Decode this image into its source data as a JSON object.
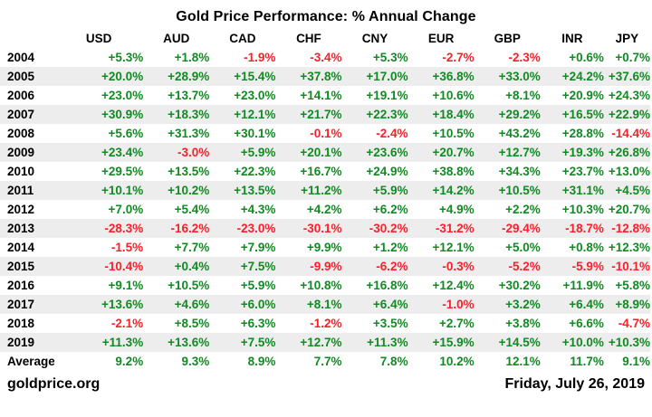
{
  "title": "Gold Price Performance: % Annual Change",
  "chart_data": {
    "type": "table",
    "title": "Gold Price Performance: % Annual Change",
    "columns": [
      "USD",
      "AUD",
      "CAD",
      "CHF",
      "CNY",
      "EUR",
      "GBP",
      "INR",
      "JPY"
    ],
    "rows": [
      {
        "label": "2004",
        "values": [
          "+5.3%",
          "+1.8%",
          "-1.9%",
          "-3.4%",
          "+5.3%",
          "-2.7%",
          "-2.3%",
          "+0.6%",
          "+0.7%"
        ]
      },
      {
        "label": "2005",
        "values": [
          "+20.0%",
          "+28.9%",
          "+15.4%",
          "+37.8%",
          "+17.0%",
          "+36.8%",
          "+33.0%",
          "+24.2%",
          "+37.6%"
        ]
      },
      {
        "label": "2006",
        "values": [
          "+23.0%",
          "+13.7%",
          "+23.0%",
          "+14.1%",
          "+19.1%",
          "+10.6%",
          "+8.1%",
          "+20.9%",
          "+24.3%"
        ]
      },
      {
        "label": "2007",
        "values": [
          "+30.9%",
          "+18.3%",
          "+12.1%",
          "+21.7%",
          "+22.3%",
          "+18.4%",
          "+29.2%",
          "+16.5%",
          "+22.9%"
        ]
      },
      {
        "label": "2008",
        "values": [
          "+5.6%",
          "+31.3%",
          "+30.1%",
          "-0.1%",
          "-2.4%",
          "+10.5%",
          "+43.2%",
          "+28.8%",
          "-14.4%"
        ]
      },
      {
        "label": "2009",
        "values": [
          "+23.4%",
          "-3.0%",
          "+5.9%",
          "+20.1%",
          "+23.6%",
          "+20.7%",
          "+12.7%",
          "+19.3%",
          "+26.8%"
        ]
      },
      {
        "label": "2010",
        "values": [
          "+29.5%",
          "+13.5%",
          "+22.3%",
          "+16.7%",
          "+24.9%",
          "+38.8%",
          "+34.3%",
          "+23.7%",
          "+13.0%"
        ]
      },
      {
        "label": "2011",
        "values": [
          "+10.1%",
          "+10.2%",
          "+13.5%",
          "+11.2%",
          "+5.9%",
          "+14.2%",
          "+10.5%",
          "+31.1%",
          "+4.5%"
        ]
      },
      {
        "label": "2012",
        "values": [
          "+7.0%",
          "+5.4%",
          "+4.3%",
          "+4.2%",
          "+6.2%",
          "+4.9%",
          "+2.2%",
          "+10.3%",
          "+20.7%"
        ]
      },
      {
        "label": "2013",
        "values": [
          "-28.3%",
          "-16.2%",
          "-23.0%",
          "-30.1%",
          "-30.2%",
          "-31.2%",
          "-29.4%",
          "-18.7%",
          "-12.8%"
        ]
      },
      {
        "label": "2014",
        "values": [
          "-1.5%",
          "+7.7%",
          "+7.9%",
          "+9.9%",
          "+1.2%",
          "+12.1%",
          "+5.0%",
          "+0.8%",
          "+12.3%"
        ]
      },
      {
        "label": "2015",
        "values": [
          "-10.4%",
          "+0.4%",
          "+7.5%",
          "-9.9%",
          "-6.2%",
          "-0.3%",
          "-5.2%",
          "-5.9%",
          "-10.1%"
        ]
      },
      {
        "label": "2016",
        "values": [
          "+9.1%",
          "+10.5%",
          "+5.9%",
          "+10.8%",
          "+16.8%",
          "+12.4%",
          "+30.2%",
          "+11.9%",
          "+5.8%"
        ]
      },
      {
        "label": "2017",
        "values": [
          "+13.6%",
          "+4.6%",
          "+6.0%",
          "+8.1%",
          "+6.4%",
          "-1.0%",
          "+3.2%",
          "+6.4%",
          "+8.9%"
        ]
      },
      {
        "label": "2018",
        "values": [
          "-2.1%",
          "+8.5%",
          "+6.3%",
          "-1.2%",
          "+3.5%",
          "+2.7%",
          "+3.8%",
          "+6.6%",
          "-4.7%"
        ]
      },
      {
        "label": "2019",
        "values": [
          "+11.3%",
          "+13.6%",
          "+7.5%",
          "+12.7%",
          "+11.3%",
          "+15.9%",
          "+14.5%",
          "+10.0%",
          "+10.3%"
        ]
      },
      {
        "label": "Average",
        "values": [
          "9.2%",
          "9.3%",
          "8.9%",
          "7.7%",
          "7.8%",
          "10.2%",
          "12.1%",
          "11.7%",
          "9.1%"
        ]
      }
    ]
  },
  "footer": {
    "site": "goldprice.org",
    "date": "Friday, July 26, 2019"
  },
  "colors": {
    "positive": "#128a23",
    "negative": "#f9202b",
    "stripe": "#ededed",
    "text": "#000000",
    "background": "#ffffff"
  }
}
